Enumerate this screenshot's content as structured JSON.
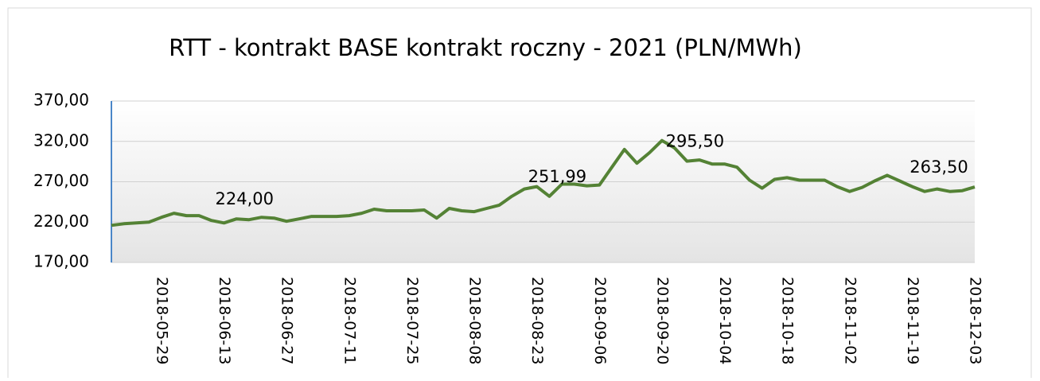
{
  "chart_data": {
    "type": "line",
    "title": "RTT - kontrakt BASE kontrakt roczny - 2021 (PLN/MWh)",
    "categories": [
      null,
      null,
      null,
      null,
      "2018-05-29",
      null,
      null,
      null,
      null,
      "2018-06-13",
      null,
      null,
      null,
      null,
      "2018-06-27",
      null,
      null,
      null,
      null,
      "2018-07-11",
      null,
      null,
      null,
      null,
      "2018-07-25",
      null,
      null,
      null,
      null,
      "2018-08-08",
      null,
      null,
      null,
      null,
      "2018-08-23",
      null,
      null,
      null,
      null,
      "2018-09-06",
      null,
      null,
      null,
      null,
      "2018-09-20",
      null,
      null,
      null,
      null,
      "2018-10-04",
      null,
      null,
      null,
      null,
      "2018-10-18",
      null,
      null,
      null,
      null,
      "2018-11-02",
      null,
      null,
      null,
      null,
      "2018-11-19",
      null,
      null,
      null,
      null,
      "2018-12-03"
    ],
    "series": [
      {
        "name": "RTT",
        "color": "#548235",
        "values": [
          216,
          218,
          219,
          220,
          226,
          231,
          228,
          228,
          222,
          219,
          224.0,
          223,
          226,
          225,
          221,
          224,
          227,
          227,
          227,
          228,
          231,
          236,
          234,
          234,
          234,
          235,
          225,
          237,
          234,
          233,
          237,
          241,
          252,
          261,
          264,
          251.99,
          267,
          267,
          265,
          266,
          288,
          310,
          293,
          306,
          321,
          312,
          295.5,
          297,
          292,
          292,
          288,
          272,
          262,
          273,
          275,
          272,
          272,
          272,
          264,
          258,
          263,
          271,
          278,
          271,
          264,
          258,
          261,
          258,
          259,
          263.5
        ],
        "value_labels": [
          null,
          null,
          null,
          null,
          null,
          null,
          null,
          null,
          null,
          null,
          "224,00",
          null,
          null,
          null,
          null,
          null,
          null,
          null,
          null,
          null,
          null,
          null,
          null,
          null,
          null,
          null,
          null,
          null,
          null,
          null,
          null,
          null,
          null,
          null,
          null,
          "251,99",
          null,
          null,
          null,
          null,
          null,
          null,
          null,
          null,
          null,
          null,
          "295,50",
          null,
          null,
          null,
          null,
          null,
          null,
          null,
          null,
          null,
          null,
          null,
          null,
          null,
          null,
          null,
          null,
          null,
          null,
          null,
          null,
          null,
          null,
          "263,50"
        ]
      }
    ],
    "ylim": [
      170,
      370
    ],
    "yticks": [
      {
        "value": 170,
        "label": "170,00"
      },
      {
        "value": 220,
        "label": "220,00"
      },
      {
        "value": 270,
        "label": "270,00"
      },
      {
        "value": 320,
        "label": "320,00"
      },
      {
        "value": 370,
        "label": "370,00"
      }
    ],
    "grid": true
  }
}
